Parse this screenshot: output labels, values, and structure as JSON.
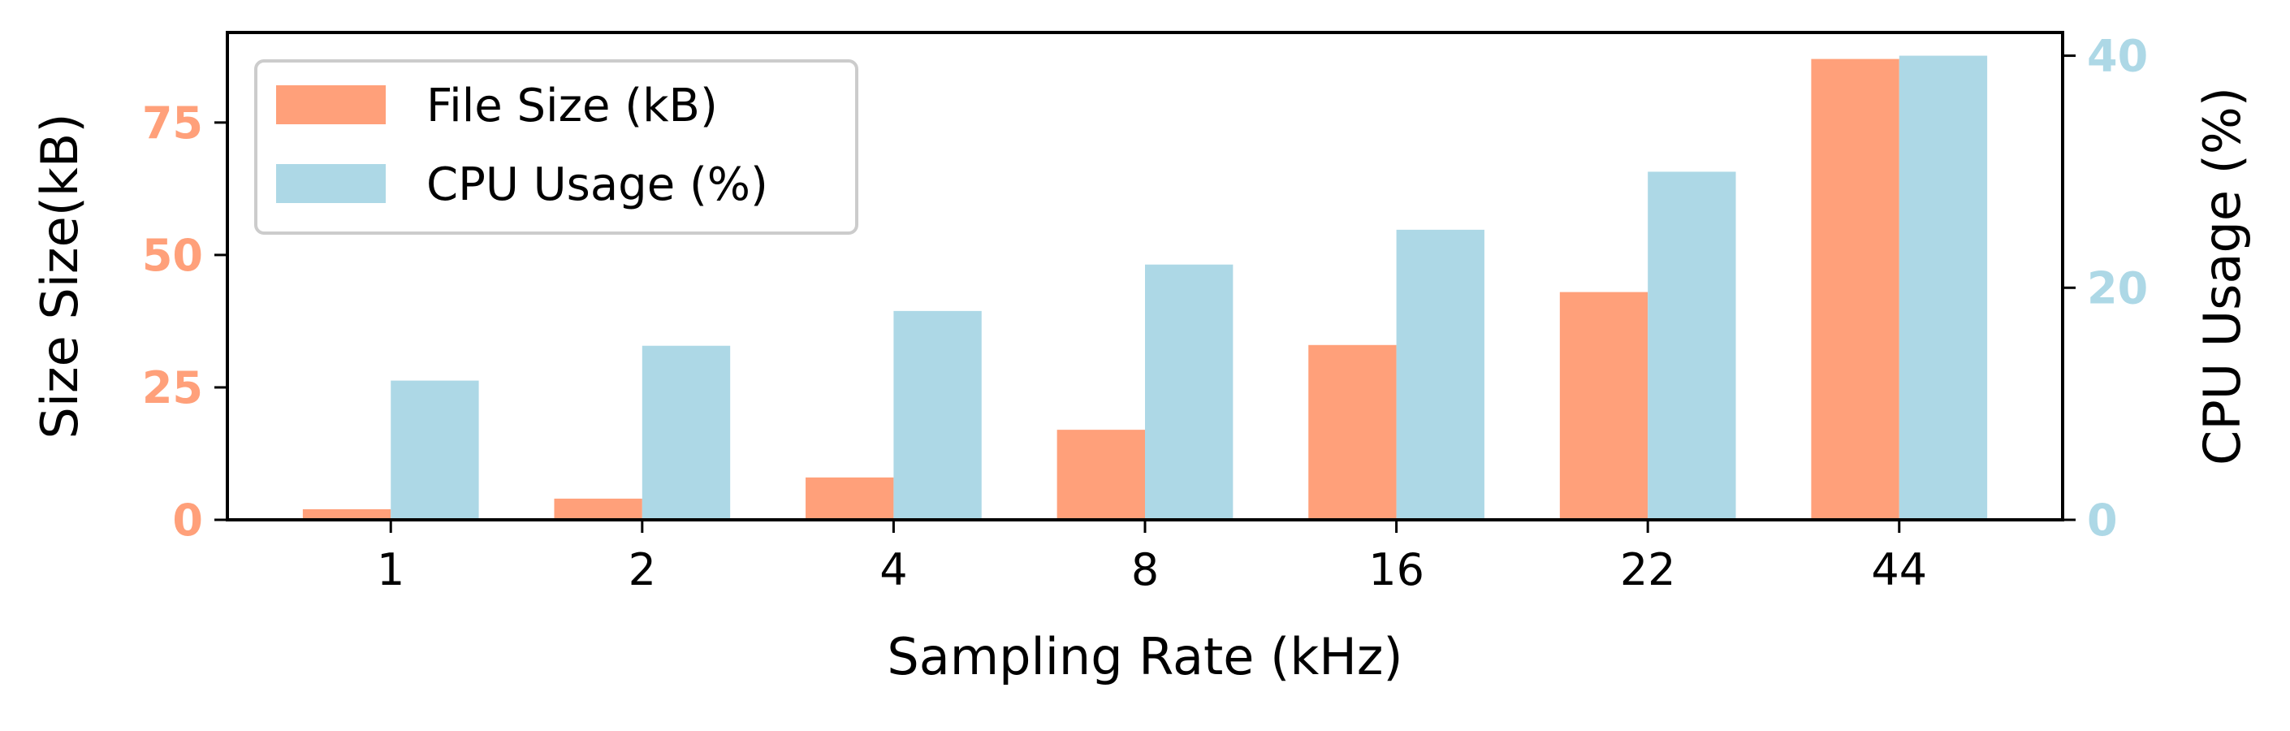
{
  "chart_data": {
    "type": "bar",
    "categories": [
      "1",
      "2",
      "4",
      "8",
      "16",
      "22",
      "44"
    ],
    "series": [
      {
        "name": "File Size (kB)",
        "axis": "left",
        "color": "#FFA07A",
        "values": [
          2,
          4,
          8,
          17,
          33,
          43,
          87
        ]
      },
      {
        "name": "CPU Usage (%)",
        "axis": "right",
        "color": "#ADD8E6",
        "values": [
          12,
          15,
          18,
          22,
          25,
          30,
          40
        ]
      }
    ],
    "xlabel": "Sampling Rate (kHz)",
    "ylabel_left": "Size Size(kB)",
    "ylabel_right": "CPU Usage (%)",
    "ylim_left": [
      0,
      92
    ],
    "ylim_right": [
      0,
      42
    ],
    "yticks_left": [
      "0",
      "25",
      "50",
      "75"
    ],
    "yticks_right": [
      "0",
      "20",
      "40"
    ],
    "legend_position": "upper-left",
    "grid": false,
    "left_tick_color": "#FFA07A",
    "right_tick_color": "#ADD8E6"
  }
}
